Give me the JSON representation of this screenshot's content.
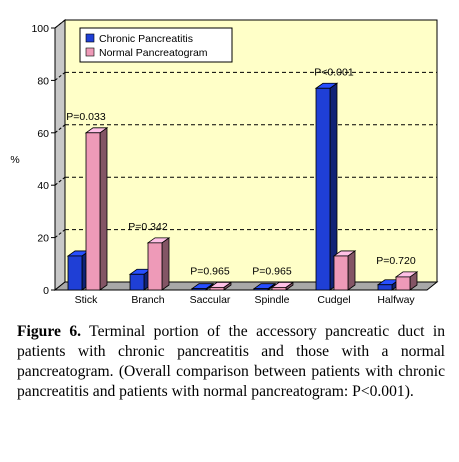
{
  "chart_data": {
    "type": "bar",
    "ylabel": "%",
    "ylim": [
      0,
      100
    ],
    "yticks": [
      0,
      20,
      40,
      60,
      80,
      100
    ],
    "grid": "dashed horizontal",
    "legend_position": "top-left",
    "categories": [
      "Stick",
      "Branch",
      "Saccular",
      "Spindle",
      "Cudgel",
      "Halfway"
    ],
    "series": [
      {
        "name": "Chronic Pancreatitis",
        "color": "#1f3fd6",
        "values": [
          13,
          6,
          0.5,
          0.5,
          77,
          2
        ]
      },
      {
        "name": "Normal Pancreatogram",
        "color": "#ee9ab8",
        "values": [
          60,
          18,
          1,
          1,
          13,
          5
        ]
      }
    ],
    "p_values": [
      "P=0.033",
      "P=0.342",
      "P=0.965",
      "P=0.965",
      "P<0.001",
      "P=0.720"
    ],
    "background_color": "#ffffc8"
  },
  "caption": {
    "label": "Figure 6.",
    "text": " Terminal portion of the accessory pancreatic duct in patients with chronic pancreatitis and those with a normal pancreatogram. (Overall comparison between patients with chronic pancreatitis and patients with normal pancreatogram: P<0.001)."
  }
}
